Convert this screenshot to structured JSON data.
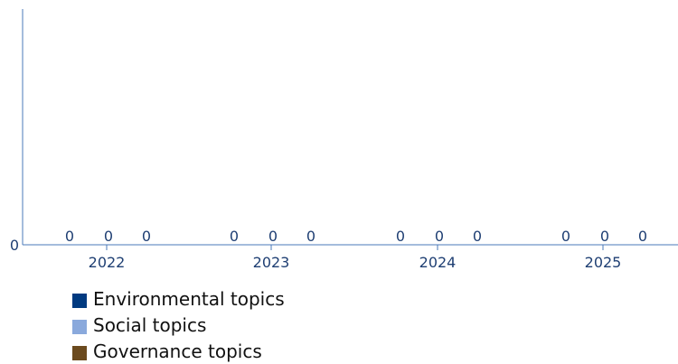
{
  "chart_data": {
    "type": "bar",
    "categories": [
      "2022",
      "2023",
      "2024",
      "2025"
    ],
    "series": [
      {
        "name": "Environmental topics",
        "color": "#003a80",
        "values": [
          0,
          0,
          0,
          0
        ]
      },
      {
        "name": "Social topics",
        "color": "#8aa9dc",
        "values": [
          0,
          0,
          0,
          0
        ]
      },
      {
        "name": "Governance topics",
        "color": "#6b4a1e",
        "values": [
          0,
          0,
          0,
          0
        ]
      }
    ],
    "y_tick_labels": [
      "0"
    ],
    "value_labels": [
      [
        "0",
        "0",
        "0"
      ],
      [
        "0",
        "0",
        "0"
      ],
      [
        "0",
        "0",
        "0"
      ],
      [
        "0",
        "0",
        "0"
      ]
    ],
    "title": "",
    "xlabel": "",
    "ylabel": "",
    "ylim": [
      0,
      1
    ],
    "grid": false,
    "legend_position": "bottom-left",
    "axis_color": "#4a78b8",
    "text_color": "#1f3f73"
  },
  "legend": {
    "items": [
      {
        "label": "Environmental topics",
        "color": "#003a80"
      },
      {
        "label": "Social topics",
        "color": "#8aa9dc"
      },
      {
        "label": "Governance topics",
        "color": "#6b4a1e"
      }
    ]
  }
}
